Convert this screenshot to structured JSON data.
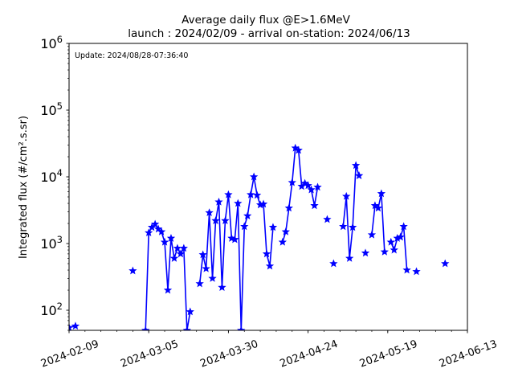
{
  "chart_data": {
    "type": "line",
    "title": "Average daily flux @E>1.6MeV",
    "subtitle": "launch : 2024/02/09 - arrival on-station: 2024/06/13",
    "annotation": "Update: 2024/08/28-07:36:40",
    "ylabel": "Integrated flux (#/cm².s.sr)",
    "xlabel": "",
    "yscale": "log",
    "ylim": [
      50,
      1000000
    ],
    "xlim": [
      "2024-02-09",
      "2024-06-13"
    ],
    "grid": false,
    "line_color": "#0000ff",
    "marker": "star",
    "y_tick_labels": [
      {
        "base": "10",
        "exp": "2",
        "value": 100
      },
      {
        "base": "10",
        "exp": "3",
        "value": 1000
      },
      {
        "base": "10",
        "exp": "4",
        "value": 10000
      },
      {
        "base": "10",
        "exp": "5",
        "value": 100000
      },
      {
        "base": "10",
        "exp": "6",
        "value": 1000000
      }
    ],
    "x_tick_labels": [
      "2024-02-09",
      "2024-03-05",
      "2024-03-30",
      "2024-04-24",
      "2024-05-19",
      "2024-06-13"
    ],
    "series": [
      {
        "x": [
          "2024-02-09",
          "2024-02-11",
          "2024-02-28",
          "2024-02-29",
          "2024-03-03",
          "2024-03-04",
          "2024-03-05",
          "2024-03-06",
          "2024-03-07",
          "2024-03-08",
          "2024-03-09",
          "2024-03-10",
          "2024-03-11",
          "2024-03-12",
          "2024-03-13",
          "2024-03-14",
          "2024-03-15",
          "2024-03-16",
          "2024-03-17",
          "2024-03-18",
          "2024-03-19",
          "2024-03-20",
          "2024-03-21",
          "2024-03-22",
          "2024-03-23",
          "2024-03-24",
          "2024-03-25",
          "2024-03-26",
          "2024-03-27",
          "2024-03-28",
          "2024-03-29",
          "2024-03-30",
          "2024-03-31",
          "2024-04-01",
          "2024-04-02",
          "2024-04-03",
          "2024-04-04",
          "2024-04-05",
          "2024-04-06",
          "2024-04-07",
          "2024-04-08",
          "2024-04-09",
          "2024-04-10",
          "2024-04-11",
          "2024-04-12",
          "2024-04-13",
          "2024-04-14",
          "2024-04-15",
          "2024-04-16",
          "2024-04-17",
          "2024-04-18",
          "2024-04-19",
          "2024-04-20",
          "2024-04-21",
          "2024-04-22",
          "2024-04-23",
          "2024-04-24",
          "2024-04-25",
          "2024-04-26",
          "2024-04-27",
          "2024-04-28",
          "2024-04-29",
          "2024-04-30",
          "2024-05-01",
          "2024-05-02",
          "2024-05-03",
          "2024-05-04",
          "2024-05-05",
          "2024-05-06",
          "2024-05-07",
          "2024-05-08",
          "2024-05-09",
          "2024-05-10",
          "2024-05-11",
          "2024-05-12",
          "2024-05-13",
          "2024-05-14",
          "2024-05-15",
          "2024-05-16",
          "2024-05-17",
          "2024-05-18",
          "2024-05-19",
          "2024-05-20",
          "2024-05-21",
          "2024-05-22",
          "2024-05-23",
          "2024-05-24",
          "2024-05-25",
          "2024-05-26",
          "2024-05-27",
          "2024-05-28",
          "2024-05-29",
          "2024-05-30",
          "2024-05-31",
          "2024-06-01",
          "2024-06-02",
          "2024-06-03",
          "2024-06-04",
          "2024-06-05",
          "2024-06-06"
        ],
        "y": [
          55,
          58,
          null,
          390,
          null,
          50,
          1450,
          1750,
          1950,
          1650,
          1500,
          1050,
          200,
          1200,
          600,
          850,
          700,
          850,
          50,
          95,
          null,
          null,
          250,
          680,
          420,
          2900,
          300,
          2200,
          4200,
          220,
          2200,
          5400,
          1200,
          1150,
          4000,
          50,
          1800,
          2600,
          5400,
          10000,
          5300,
          3800,
          3900,
          700,
          460,
          1750,
          null,
          null,
          1050,
          1500,
          3400,
          8200,
          27000,
          25000,
          7200,
          8000,
          7400,
          6400,
          3700,
          7000,
          null,
          null,
          2300,
          null,
          500,
          null,
          null,
          1800,
          5100,
          600,
          1750,
          14800,
          10400,
          null,
          720,
          null,
          1350,
          3700,
          3400,
          5600,
          750,
          null,
          1050,
          800,
          1200,
          1250,
          1800,
          400,
          null,
          null,
          380,
          null,
          null,
          null,
          null,
          null,
          null,
          null,
          null,
          500
        ]
      }
    ]
  }
}
